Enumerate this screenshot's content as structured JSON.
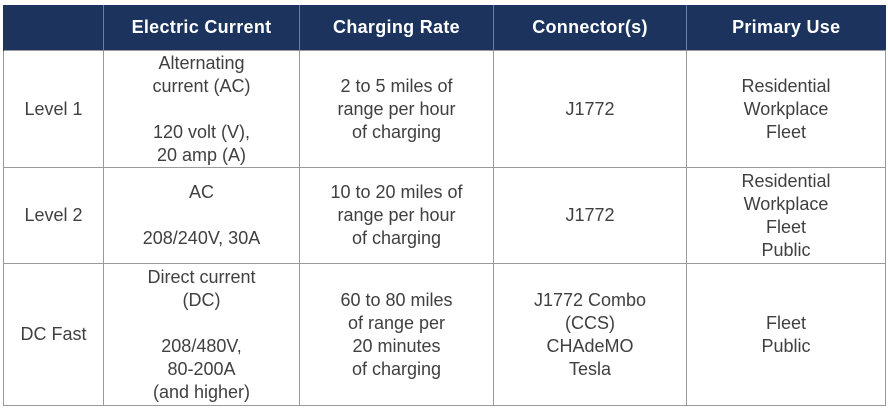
{
  "headers": [
    "",
    "Electric Current",
    "Charging Rate",
    "Connector(s)",
    "Primary Use"
  ],
  "rows": [
    {
      "level": "Level 1",
      "current_a": [
        "Alternating",
        "current (AC)"
      ],
      "current_b": [
        "120 volt (V),",
        "20 amp (A)"
      ],
      "rate": [
        "2 to 5 miles of",
        "range per hour",
        "of charging"
      ],
      "connectors": [
        "J1772"
      ],
      "use": [
        "Residential",
        "Workplace",
        "Fleet"
      ]
    },
    {
      "level": "Level 2",
      "current_a": [
        "AC"
      ],
      "current_b": [
        "208/240V, 30A"
      ],
      "rate": [
        "10 to 20 miles of",
        "range per hour",
        "of charging"
      ],
      "connectors": [
        "J1772"
      ],
      "use": [
        "Residential",
        "Workplace",
        "Fleet",
        "Public"
      ]
    },
    {
      "level": "DC Fast",
      "current_a": [
        "Direct current",
        "(DC)"
      ],
      "current_b": [
        "208/480V,",
        "80-200A",
        "(and higher)"
      ],
      "rate": [
        "60 to 80 miles",
        "of range per",
        "20 minutes",
        "of charging"
      ],
      "connectors": [
        "J1772 Combo",
        "(CCS)",
        "CHAdeMO",
        "Tesla"
      ],
      "use": [
        "Fleet",
        "Public"
      ]
    }
  ],
  "colors": {
    "header_bg": "#1c335e",
    "header_text": "#ffffff",
    "body_text": "#404040",
    "border": "#9a9a9a"
  }
}
